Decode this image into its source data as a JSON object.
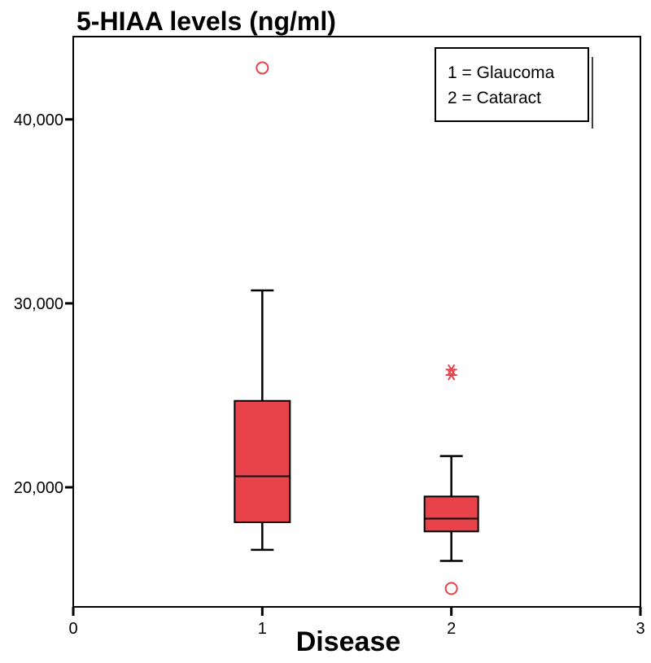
{
  "chart_data": {
    "type": "boxplot",
    "title": "5-HIAA levels (ng/ml)",
    "xlabel": "Disease",
    "ylabel": "",
    "xlim": [
      0,
      3
    ],
    "ylim": [
      13500,
      44500
    ],
    "x_ticks": [
      {
        "value": 0,
        "label": "0"
      },
      {
        "value": 1,
        "label": "1"
      },
      {
        "value": 2,
        "label": "2"
      },
      {
        "value": 3,
        "label": "3"
      }
    ],
    "y_ticks": [
      {
        "value": 20000,
        "label": "20,000"
      },
      {
        "value": 30000,
        "label": "30,000"
      },
      {
        "value": 40000,
        "label": "40,000"
      }
    ],
    "legend": {
      "placement": "top-right",
      "entries": [
        "1 = Glaucoma",
        "2 = Cataract"
      ]
    },
    "box_color": "#e8424a",
    "outlier_color": "#e8424a",
    "series": [
      {
        "name": "Glaucoma",
        "x": 1,
        "min": 16600,
        "q1": 18100,
        "median": 20600,
        "q3": 24700,
        "max": 30700,
        "outliers": [
          42800
        ],
        "extremes": []
      },
      {
        "name": "Cataract",
        "x": 2,
        "min": 16000,
        "q1": 17600,
        "median": 18300,
        "q3": 19500,
        "max": 21700,
        "outliers": [
          14500
        ],
        "extremes": [
          26100,
          26400
        ]
      }
    ]
  }
}
